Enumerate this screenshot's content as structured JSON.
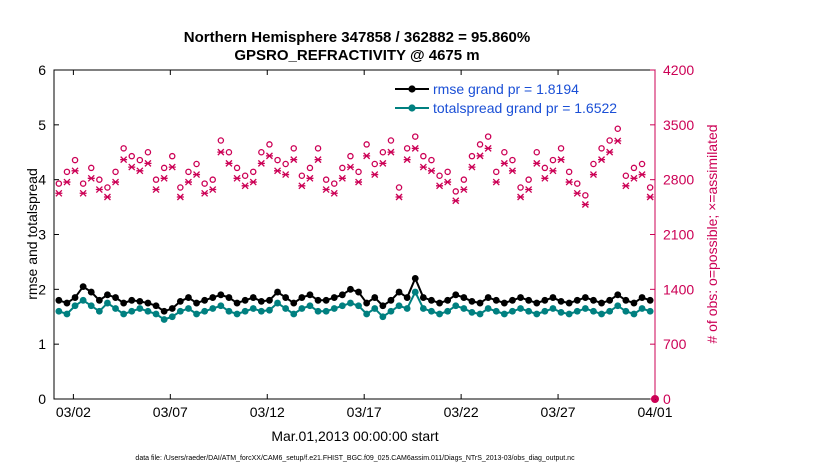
{
  "chart_data": {
    "type": "line",
    "title_line1": "Northern Hemisphere 347858 / 362882 = 95.860%",
    "title_line2": "GPSRO_REFRACTIVITY @ 4675 m",
    "xlabel": "Mar.01,2013 00:00:00 start",
    "ylabel": "rmse and totalspread",
    "y2label": "# of obs: o=possible; ×=assimilated",
    "footnote": "data file: /Users/raeder/DAI/ATM_forcXX/CAM6_setup/f.e21.FHIST_BGC.f09_025.CAM6assim.011/Diags_NTrS_2013-03/obs_diag_output.nc",
    "xlim": [
      0,
      31
    ],
    "ylim": [
      0,
      6
    ],
    "y2lim": [
      0,
      4200
    ],
    "xticks": [
      1,
      6,
      11,
      16,
      21,
      26,
      31
    ],
    "xtick_labels": [
      "03/02",
      "03/07",
      "03/12",
      "03/17",
      "03/22",
      "03/27",
      "04/01"
    ],
    "yticks": [
      0,
      1,
      2,
      3,
      4,
      5,
      6
    ],
    "yticks_labels": [
      "0",
      "1",
      "2",
      "3",
      "4",
      "5",
      "6"
    ],
    "y2ticks": [
      0,
      700,
      1400,
      2100,
      2800,
      3500,
      4200
    ],
    "y2ticks_labels": [
      "0",
      "700",
      "1400",
      "2100",
      "2800",
      "3500",
      "4200"
    ],
    "colors": {
      "rmse": "#000000",
      "spread": "#008080",
      "obs": "#cc0055",
      "axis2": "#cc0055",
      "legend_text": "#1a4fd6"
    },
    "legend": [
      {
        "label": "rmse grand pr = 1.8194",
        "color": "#000000"
      },
      {
        "label": "totalspread grand pr = 1.6522",
        "color": "#008080"
      }
    ],
    "series_rmse": [
      1.8,
      1.75,
      1.85,
      2.05,
      1.95,
      1.8,
      1.9,
      1.85,
      1.75,
      1.8,
      1.78,
      1.75,
      1.7,
      1.6,
      1.65,
      1.78,
      1.85,
      1.75,
      1.8,
      1.85,
      1.9,
      1.85,
      1.75,
      1.8,
      1.85,
      1.78,
      1.8,
      1.95,
      1.85,
      1.75,
      1.85,
      1.9,
      1.8,
      1.8,
      1.85,
      1.9,
      2.0,
      1.95,
      1.75,
      1.85,
      1.7,
      1.8,
      1.95,
      1.85,
      2.2,
      1.85,
      1.8,
      1.75,
      1.8,
      1.9,
      1.85,
      1.78,
      1.75,
      1.85,
      1.8,
      1.75,
      1.8,
      1.85,
      1.8,
      1.75,
      1.8,
      1.85,
      1.78,
      1.75,
      1.8,
      1.85,
      1.8,
      1.75,
      1.8,
      1.9,
      1.8,
      1.75,
      1.85,
      1.8
    ],
    "series_spread": [
      1.6,
      1.55,
      1.7,
      1.8,
      1.7,
      1.6,
      1.75,
      1.65,
      1.55,
      1.6,
      1.65,
      1.6,
      1.55,
      1.45,
      1.5,
      1.6,
      1.65,
      1.55,
      1.6,
      1.65,
      1.7,
      1.6,
      1.55,
      1.6,
      1.65,
      1.6,
      1.62,
      1.75,
      1.65,
      1.55,
      1.65,
      1.7,
      1.6,
      1.6,
      1.65,
      1.7,
      1.75,
      1.7,
      1.55,
      1.65,
      1.5,
      1.6,
      1.7,
      1.65,
      1.95,
      1.65,
      1.6,
      1.55,
      1.6,
      1.7,
      1.65,
      1.58,
      1.55,
      1.65,
      1.6,
      1.55,
      1.6,
      1.65,
      1.6,
      1.55,
      1.6,
      1.65,
      1.58,
      1.55,
      1.6,
      1.65,
      1.6,
      1.55,
      1.6,
      1.7,
      1.6,
      1.55,
      1.65,
      1.6
    ],
    "obs_possible": [
      2750,
      2900,
      3050,
      2750,
      2950,
      2800,
      2700,
      2900,
      3200,
      3100,
      3050,
      3150,
      2800,
      2950,
      3100,
      2700,
      2900,
      3000,
      2750,
      2800,
      3300,
      3150,
      2950,
      2850,
      2900,
      3150,
      3250,
      3050,
      3000,
      3200,
      2850,
      2950,
      3200,
      2800,
      2750,
      2950,
      3100,
      2900,
      3250,
      3000,
      3150,
      3300,
      2700,
      3200,
      3350,
      3100,
      3050,
      2850,
      2900,
      2650,
      2800,
      3100,
      3250,
      3350,
      2900,
      3150,
      3050,
      2700,
      2800,
      3150,
      2950,
      3050,
      3200,
      2900,
      2750,
      2600,
      3000,
      3200,
      3300,
      3450,
      2850,
      2950,
      3000,
      2700
    ]
  }
}
